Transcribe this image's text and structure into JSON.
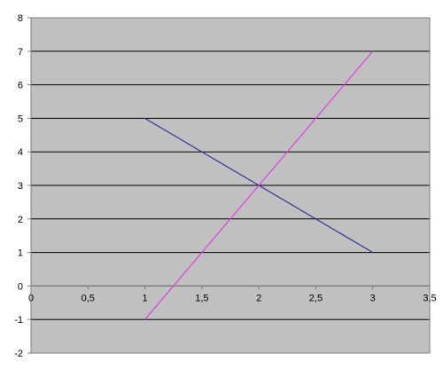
{
  "chart_data": {
    "type": "line",
    "title": "",
    "xlabel": "",
    "ylabel": "",
    "xlim": [
      0,
      3.5
    ],
    "ylim": [
      -2,
      8
    ],
    "grid": true,
    "legend": "none",
    "x_ticks": [
      {
        "value": 0,
        "label": "0"
      },
      {
        "value": 0.5,
        "label": "0,5"
      },
      {
        "value": 1,
        "label": "1"
      },
      {
        "value": 1.5,
        "label": "1,5"
      },
      {
        "value": 2,
        "label": "2"
      },
      {
        "value": 2.5,
        "label": "2,5"
      },
      {
        "value": 3,
        "label": "3"
      },
      {
        "value": 3.5,
        "label": "3,5"
      }
    ],
    "y_ticks": [
      {
        "value": -2,
        "label": "-2"
      },
      {
        "value": -1,
        "label": "-1"
      },
      {
        "value": 0,
        "label": "0"
      },
      {
        "value": 1,
        "label": "1"
      },
      {
        "value": 2,
        "label": "2"
      },
      {
        "value": 3,
        "label": "3"
      },
      {
        "value": 4,
        "label": "4"
      },
      {
        "value": 5,
        "label": "5"
      },
      {
        "value": 6,
        "label": "6"
      },
      {
        "value": 7,
        "label": "7"
      },
      {
        "value": 8,
        "label": "8"
      }
    ],
    "series": [
      {
        "color": "#333399",
        "x": [
          1,
          2,
          3
        ],
        "y": [
          5,
          3,
          1
        ]
      },
      {
        "color": "#e040e0",
        "x": [
          1,
          2,
          3
        ],
        "y": [
          -1,
          3,
          7
        ]
      }
    ],
    "colors": {
      "plot_background": "#c0c0c0",
      "gridline": "#000000",
      "axis": "#808080"
    }
  }
}
